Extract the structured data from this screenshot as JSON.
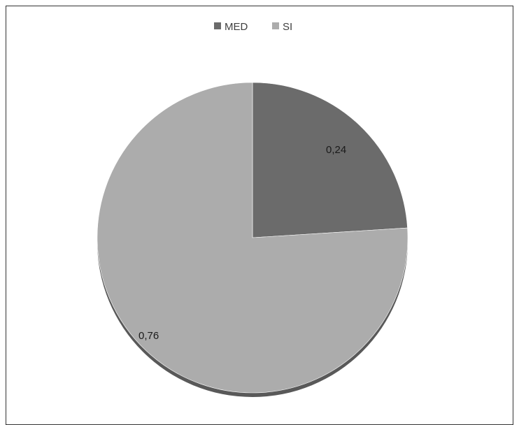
{
  "chart_data": {
    "type": "pie",
    "title": "",
    "categories": [
      "MED",
      "SI"
    ],
    "values": [
      0.24,
      0.76
    ],
    "data_labels": [
      "0,24",
      "0,76"
    ],
    "colors": [
      "#6b6b6b",
      "#acacac"
    ],
    "shadow_color": "#595959",
    "legend_position": "top",
    "legend": [
      {
        "name": "MED",
        "color": "#6b6b6b"
      },
      {
        "name": "SI",
        "color": "#acacac"
      }
    ]
  }
}
